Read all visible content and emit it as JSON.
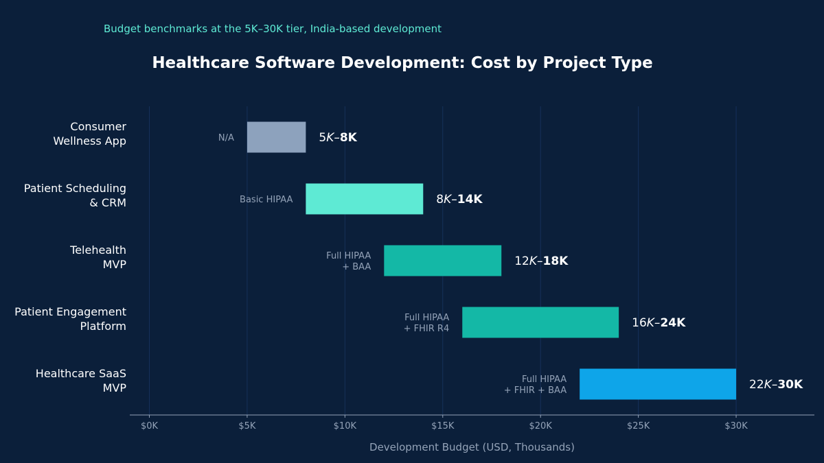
{
  "chart_data": {
    "type": "bar",
    "subtitle": "Budget benchmarks at the 5K–30K tier, India-based development",
    "title": "Healthcare Software Development: Cost by Project Type",
    "xlabel": "Development Budget (USD, Thousands)",
    "xlim": [
      -1,
      34
    ],
    "x_ticks": [
      0,
      5,
      10,
      15,
      20,
      25,
      30
    ],
    "x_tick_labels": [
      "$0K",
      "$5K",
      "$10K",
      "$15K",
      "$20K",
      "$25K",
      "$30K"
    ],
    "grid": "vertical",
    "categories": [
      [
        "Consumer",
        "Wellness App"
      ],
      [
        "Patient Scheduling",
        "& CRM"
      ],
      [
        "Telehealth",
        "MVP"
      ],
      [
        "Patient Engagement",
        "Platform"
      ],
      [
        "Healthcare SaaS",
        "MVP"
      ]
    ],
    "ranges": [
      {
        "low": 5,
        "high": 8,
        "label_start": "5",
        "label_mid": "K–",
        "label_end": "8K",
        "tier": [
          "N/A"
        ],
        "color": "#8da2bd"
      },
      {
        "low": 8,
        "high": 14,
        "label_start": "8",
        "label_mid": "K–",
        "label_end": "14K",
        "tier": [
          "Basic HIPAA"
        ],
        "color": "#5eead4"
      },
      {
        "low": 12,
        "high": 18,
        "label_start": "12",
        "label_mid": "K–",
        "label_end": "18K",
        "tier": [
          "Full HIPAA",
          "+ BAA"
        ],
        "color": "#14b8a6"
      },
      {
        "low": 16,
        "high": 24,
        "label_start": "16",
        "label_mid": "K–",
        "label_end": "24K",
        "tier": [
          "Full HIPAA",
          "+ FHIR R4"
        ],
        "color": "#14b8a6"
      },
      {
        "low": 22,
        "high": 30,
        "label_start": "22",
        "label_mid": "K–",
        "label_end": "30K",
        "tier": [
          "Full HIPAA",
          "+ FHIR + BAA"
        ],
        "color": "#0ea5e9"
      }
    ]
  }
}
